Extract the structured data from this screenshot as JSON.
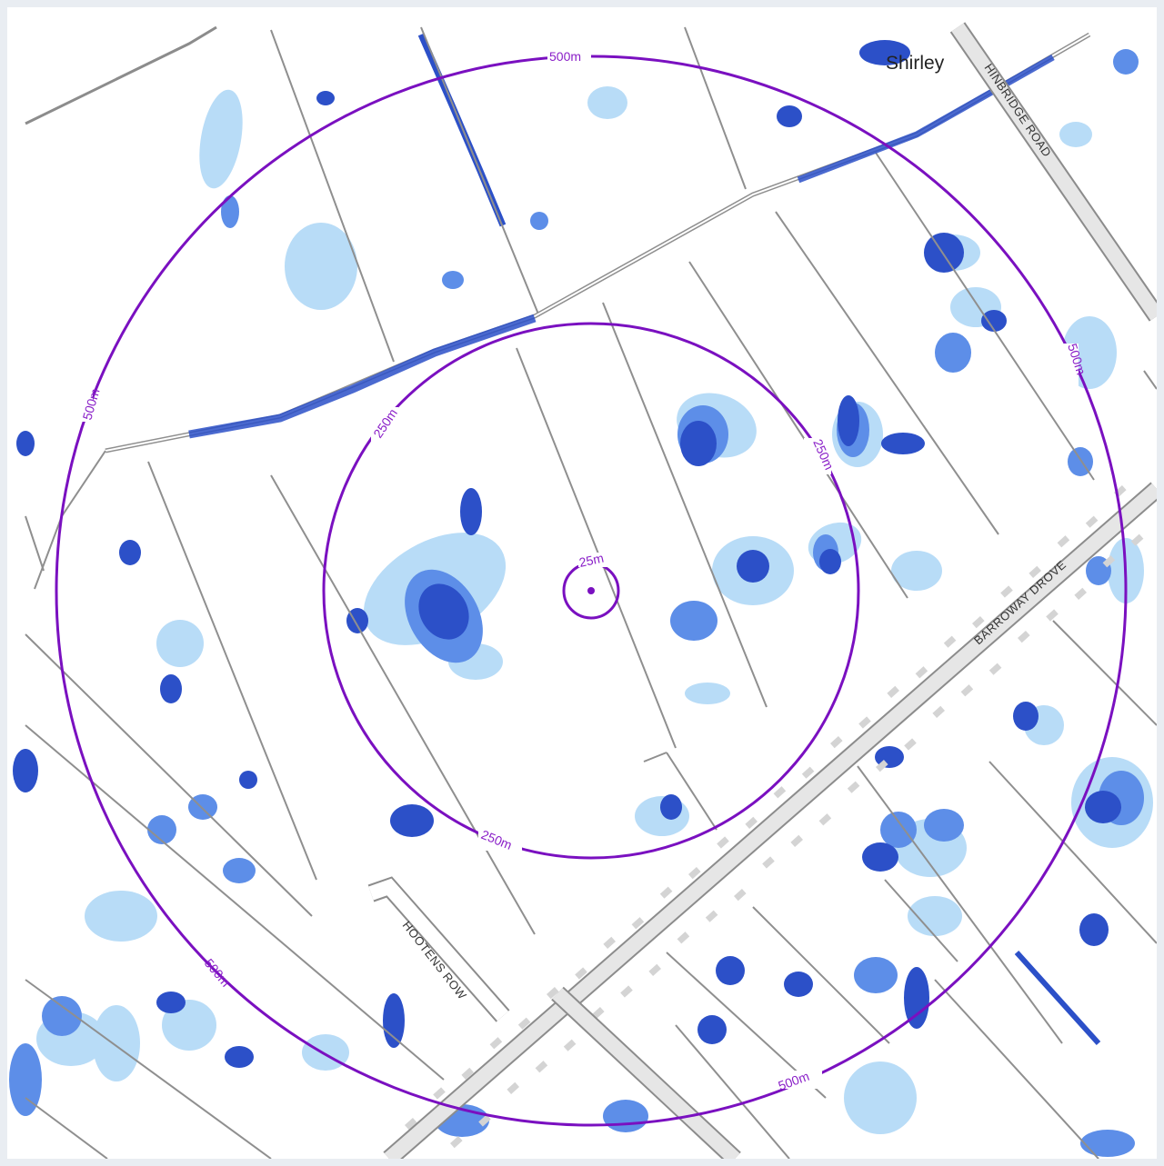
{
  "map": {
    "place_label": "Shirley",
    "roads": {
      "r1": "HINBRIDGE ROAD",
      "r2": "BARROWAY DROVE",
      "r3": "HOOTENS ROW"
    },
    "rings": {
      "inner": "25m",
      "middle": "250m",
      "outer": "500m"
    },
    "colors": {
      "ring": "#7a10c0",
      "water_light": "#b8dcf7",
      "water_mid": "#5d8ee8",
      "water_dark": "#2c50c8",
      "field_line": "#8f8f8f",
      "road_fill": "#e6e6e6",
      "road_edge": "#8c8c8c",
      "building": "#d4d4d4"
    },
    "legend_semantics": {
      "inner_ring_icon": "target-point-icon"
    }
  }
}
